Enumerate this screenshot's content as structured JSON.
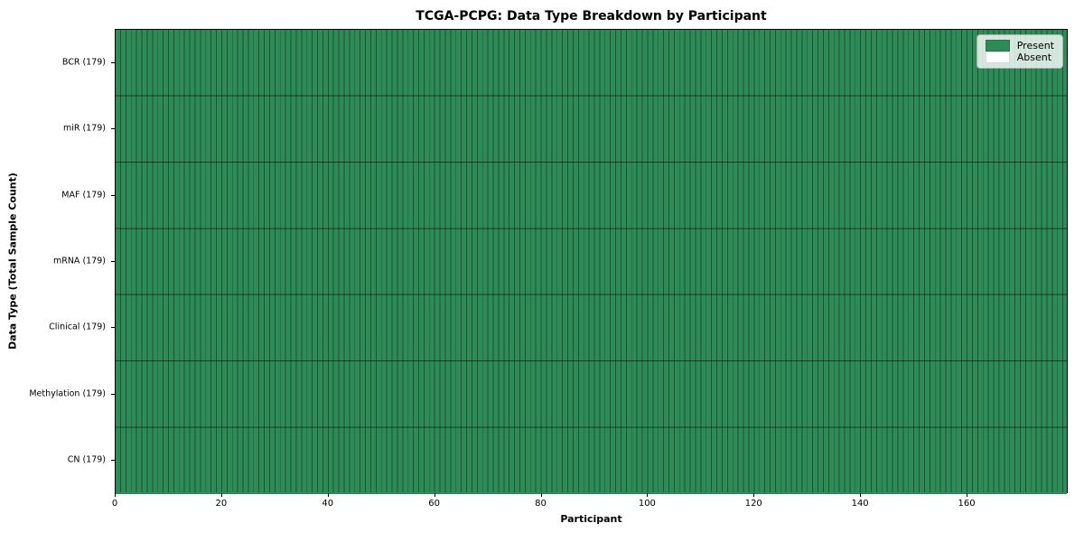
{
  "title": "TCGA-PCPG: Data Type Breakdown by Participant",
  "x_axis": {
    "label": "Participant",
    "ticks": [
      0,
      20,
      40,
      60,
      80,
      100,
      120,
      140,
      160
    ],
    "range": [
      0,
      179
    ]
  },
  "y_axis": {
    "label": "Data Type (Total Sample Count)"
  },
  "legend": {
    "items": [
      {
        "label": "Present",
        "color": "#2e8b57"
      },
      {
        "label": "Absent",
        "color": "#ffffff"
      }
    ]
  },
  "colors": {
    "present": "#2e8b57",
    "absent": "#ffffff",
    "cell_edge": "rgba(0,0,0,0.40)",
    "row_edge": "rgba(0,0,0,0.55)",
    "spine": "#000000"
  },
  "chart_data": {
    "type": "heatmap",
    "title": "TCGA-PCPG: Data Type Breakdown by Participant",
    "xlabel": "Participant",
    "ylabel": "Data Type (Total Sample Count)",
    "x_range": [
      0,
      179
    ],
    "n_participants": 179,
    "x_ticks": [
      0,
      20,
      40,
      60,
      80,
      100,
      120,
      140,
      160
    ],
    "rows": [
      {
        "label": "BCR (179)",
        "data_type": "BCR",
        "total_samples": 179,
        "present_participants": 179,
        "absent_participants": 0
      },
      {
        "label": "miR (179)",
        "data_type": "miR",
        "total_samples": 179,
        "present_participants": 179,
        "absent_participants": 0
      },
      {
        "label": "MAF (179)",
        "data_type": "MAF",
        "total_samples": 179,
        "present_participants": 179,
        "absent_participants": 0
      },
      {
        "label": "mRNA (179)",
        "data_type": "mRNA",
        "total_samples": 179,
        "present_participants": 179,
        "absent_participants": 0
      },
      {
        "label": "Clinical (179)",
        "data_type": "Clinical",
        "total_samples": 179,
        "present_participants": 179,
        "absent_participants": 0
      },
      {
        "label": "Methylation (179)",
        "data_type": "Methylation",
        "total_samples": 179,
        "present_participants": 179,
        "absent_participants": 0
      },
      {
        "label": "CN (179)",
        "data_type": "CN",
        "total_samples": 179,
        "present_participants": 179,
        "absent_participants": 0
      }
    ],
    "legend_entries": [
      "Present",
      "Absent"
    ],
    "legend_position": "upper right",
    "cell_values": "all rows present for every participant 0-178"
  }
}
